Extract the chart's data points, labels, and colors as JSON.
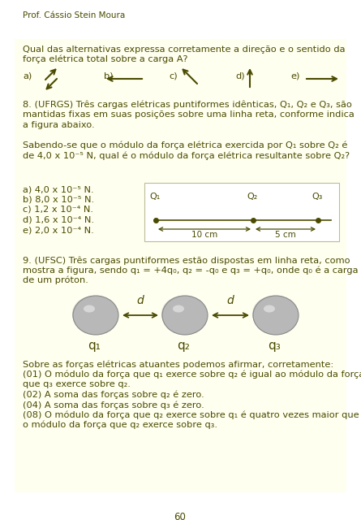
{
  "page_bg": "#ffffff",
  "yellow_bg": "#fffff0",
  "text_color": "#4a4a00",
  "header": "Prof. Cássio Stein Moura",
  "page_number": "60",
  "q7_line1": "Qual das alternativas expressa corretamente a direção e o sentido da",
  "q7_line2": "força elétrica total sobre a carga A?",
  "q8_lines": [
    "8. (UFRGS) Três cargas elétricas puntiformes idênticas, Q₁, Q₂ e Q₃, são",
    "mantidas fixas em suas posições sobre uma linha reta, conforme indica",
    "a figura abaixo.",
    "",
    "Sabendo-se que o módulo da força elétrica exercida por Q₁ sobre Q₂ é",
    "de 4,0 x 10⁻⁵ N, qual é o módulo da força elétrica resultante sobre Q₂?"
  ],
  "q8_opts": [
    "a) 4,0 x 10⁻⁵ N.",
    "b) 8,0 x 10⁻⁵ N.",
    "c) 1,2 x 10⁻⁴ N.",
    "d) 1,6 x 10⁻⁴ N.",
    "e) 2,0 x 10⁻⁴ N."
  ],
  "q9_lines": [
    "9. (UFSC) Três cargas puntiformes estão dispostas em linha reta, como",
    "mostra a figura, sendo q₁ = +4q₀, q₂ = -q₀ e q₃ = +q₀, onde q₀ é a carga",
    "de um próton."
  ],
  "q9_bottom": [
    "Sobre as forças elétricas atuantes podemos afirmar, corretamente:",
    "(01) O módulo da força que q₁ exerce sobre q₂ é igual ao módulo da força",
    "que q₃ exerce sobre q₂.",
    "(02) A soma das forças sobre q₂ é zero.",
    "(04) A soma das forças sobre q₃ é zero.",
    "(08) O módulo da força que q₂ exerce sobre q₁ é quatro vezes maior que",
    "o módulo da força que q₂ exerce sobre q₃."
  ]
}
